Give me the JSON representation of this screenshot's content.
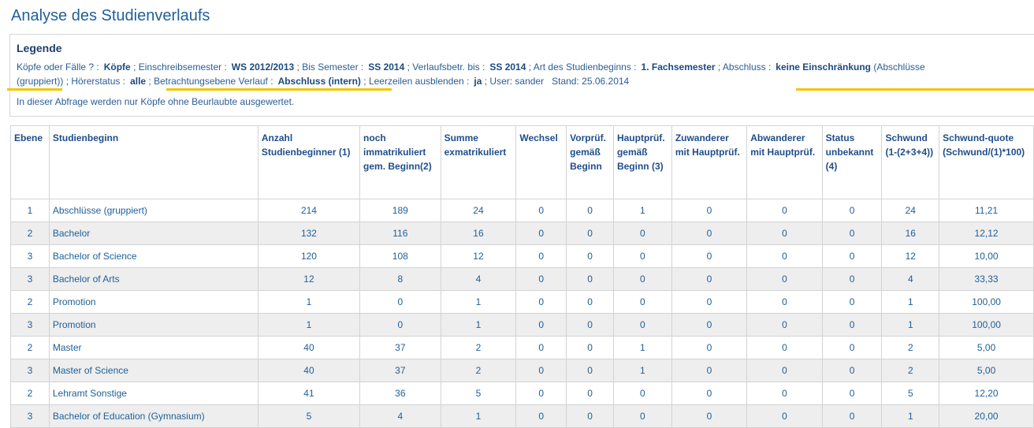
{
  "title": "Analyse des Studienverlaufs",
  "legend": {
    "heading": "Legende",
    "line1": [
      {
        "label": "Köpfe oder Fälle ? :",
        "value": "Köpfe"
      },
      {
        "label": "Einschreibsemester :",
        "value": "WS 2012/2013"
      },
      {
        "label": "Bis Semester :",
        "value": "SS 2014"
      },
      {
        "label": "Verlaufsbetr. bis :",
        "value": "SS 2014"
      },
      {
        "label": "Art des Studienbeginns :",
        "value": "1. Fachsemester"
      },
      {
        "label": "Abschluss :",
        "value": "keine Einschränkung",
        "extra": "(Abschlüsse"
      }
    ],
    "line2": {
      "cont": "(gruppiert))",
      "hoererstatus_label": "Hörerstatus :",
      "hoererstatus_value": "alle",
      "ebene_label": "Betrachtungsebene Verlauf :",
      "ebene_value": "Abschluss (intern)",
      "leer_label": "Leerzeilen ausblenden :",
      "leer_value": "ja",
      "user": "User: sander",
      "stand": "Stand: 25.06.2014"
    },
    "note": "In dieser Abfrage werden nur Köpfe ohne Beurlaubte ausgewertet."
  },
  "table": {
    "headers": [
      "Ebene",
      "Studienbeginn",
      "Anzahl Studienbeginner (1)",
      "noch immatrikuliert gem. Beginn(2)",
      "Summe exmatrikuliert",
      "Wechsel",
      "Vorprüf. gemäß Beginn",
      "Hauptprüf. gemäß Beginn (3)",
      "Zuwanderer mit Hauptprüf.",
      "Abwanderer mit Hauptprüf.",
      "Status unbekannt (4)",
      "Schwund (1-(2+3+4))",
      "Schwund-quote (Schwund/(1)*100)"
    ],
    "rows": [
      [
        "1",
        "Abschlüsse (gruppiert)",
        "214",
        "189",
        "24",
        "0",
        "0",
        "1",
        "0",
        "0",
        "0",
        "24",
        "11,21"
      ],
      [
        "2",
        "Bachelor",
        "132",
        "116",
        "16",
        "0",
        "0",
        "0",
        "0",
        "0",
        "0",
        "16",
        "12,12"
      ],
      [
        "3",
        "Bachelor of Science",
        "120",
        "108",
        "12",
        "0",
        "0",
        "0",
        "0",
        "0",
        "0",
        "12",
        "10,00"
      ],
      [
        "3",
        "Bachelor of Arts",
        "12",
        "8",
        "4",
        "0",
        "0",
        "0",
        "0",
        "0",
        "0",
        "4",
        "33,33"
      ],
      [
        "2",
        "Promotion",
        "1",
        "0",
        "1",
        "0",
        "0",
        "0",
        "0",
        "0",
        "0",
        "1",
        "100,00"
      ],
      [
        "3",
        "Promotion",
        "1",
        "0",
        "1",
        "0",
        "0",
        "0",
        "0",
        "0",
        "0",
        "1",
        "100,00"
      ],
      [
        "2",
        "Master",
        "40",
        "37",
        "2",
        "0",
        "0",
        "1",
        "0",
        "0",
        "0",
        "2",
        "5,00"
      ],
      [
        "3",
        "Master of Science",
        "40",
        "37",
        "2",
        "0",
        "0",
        "1",
        "0",
        "0",
        "0",
        "2",
        "5,00"
      ],
      [
        "2",
        "Lehramt Sonstige",
        "41",
        "36",
        "5",
        "0",
        "0",
        "0",
        "0",
        "0",
        "0",
        "5",
        "12,20"
      ],
      [
        "3",
        "Bachelor of Education (Gymnasium)",
        "5",
        "4",
        "1",
        "0",
        "0",
        "0",
        "0",
        "0",
        "0",
        "1",
        "20,00"
      ]
    ]
  },
  "colors": {
    "title": "#1f5f99",
    "text": "#1f4e8c",
    "highlight_underline": "#f2c700",
    "row_alt": "#eeeeee",
    "border": "#d3d3d3"
  }
}
